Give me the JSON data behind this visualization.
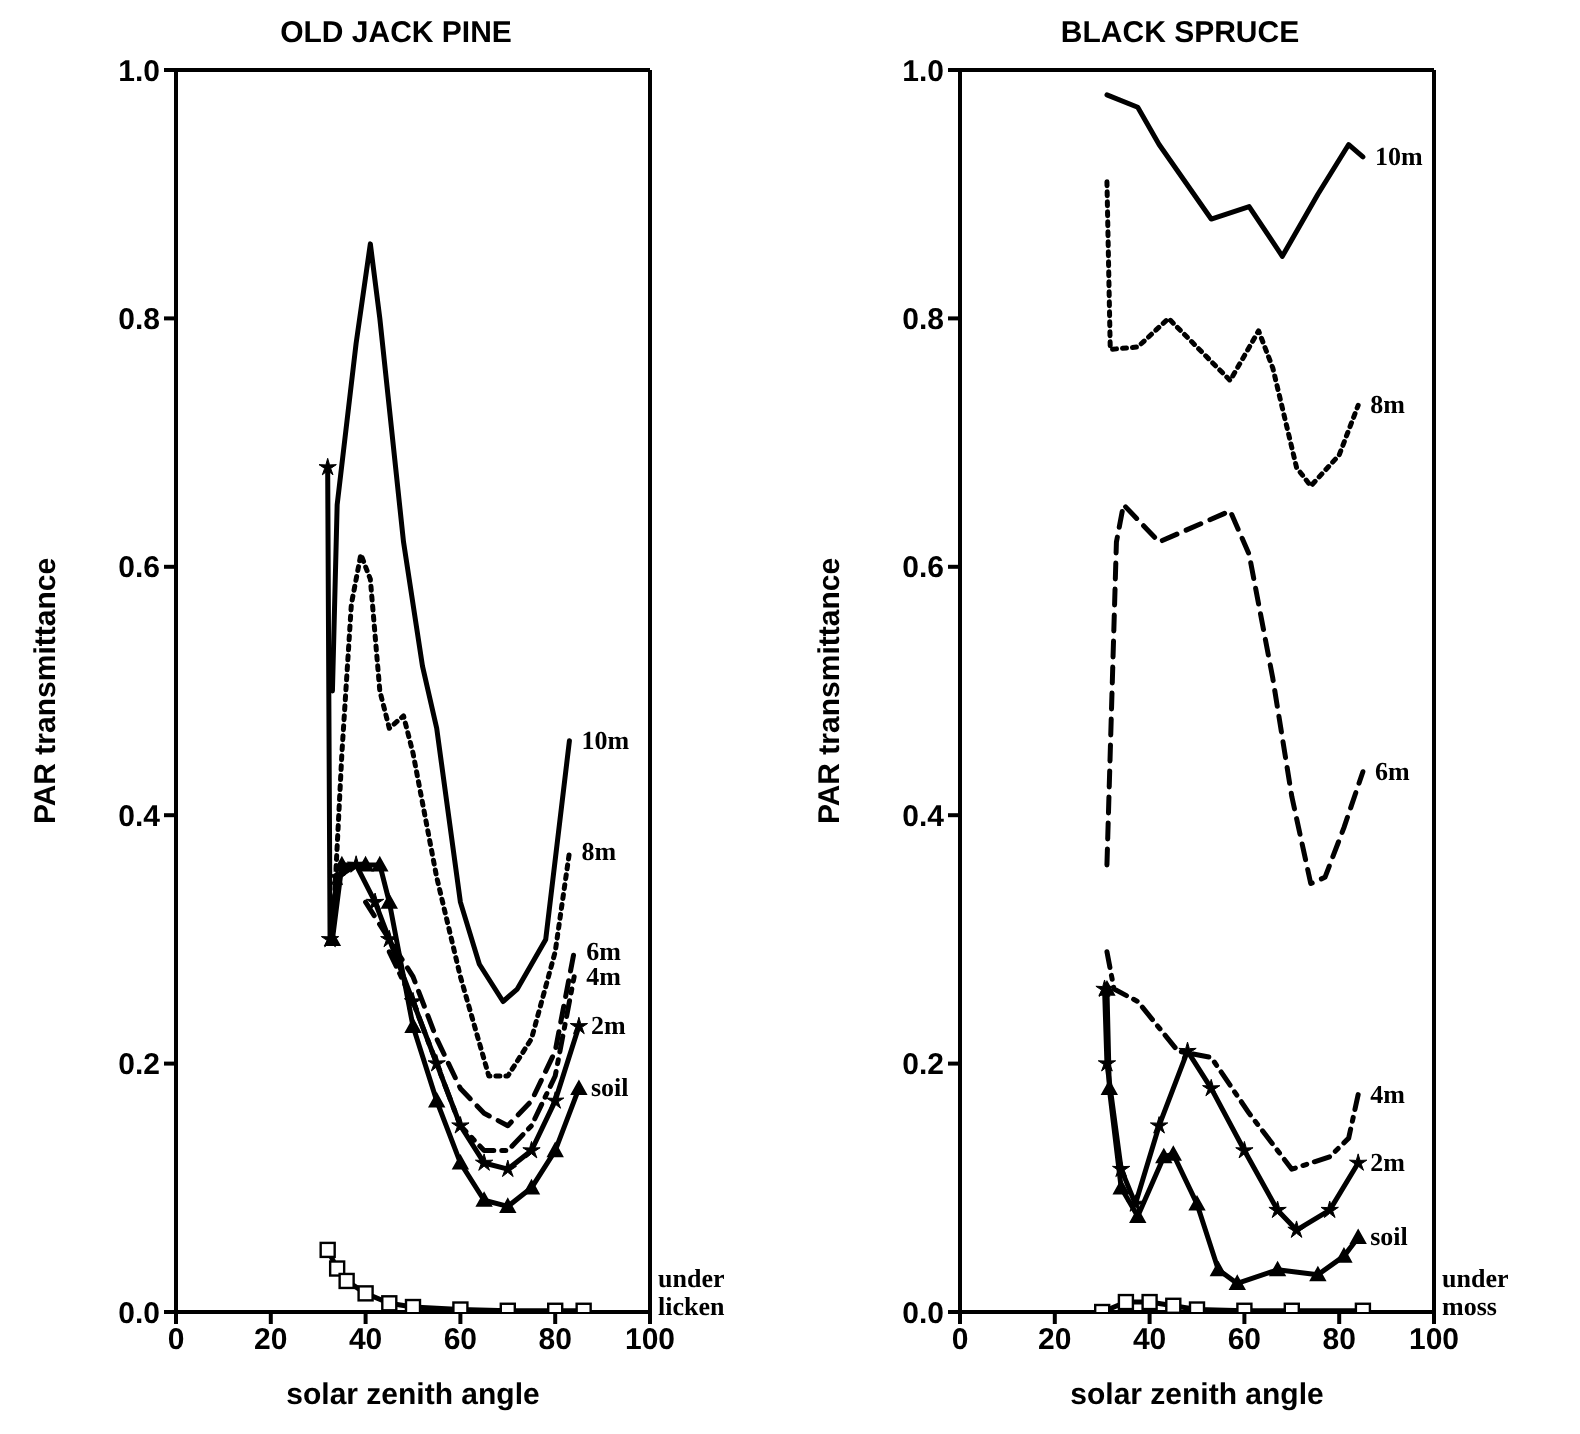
{
  "chart_data": [
    {
      "type": "line",
      "title": "OLD JACK PINE",
      "xlabel": "solar zenith angle",
      "ylabel": "PAR transmittance",
      "xlim": [
        0,
        100
      ],
      "xticks": [
        0,
        20,
        40,
        60,
        80,
        100
      ],
      "ylim": [
        0,
        1
      ],
      "yticks": [
        {
          "value": 0,
          "label": "0.0"
        },
        {
          "value": 0.2,
          "label": "0.2"
        },
        {
          "value": 0.4,
          "label": "0.4"
        },
        {
          "value": 0.6,
          "label": "0.6"
        },
        {
          "value": 0.8,
          "label": "0.8"
        },
        {
          "value": 1,
          "label": "1.0"
        }
      ],
      "grid": false,
      "legend": false,
      "series": [
        {
          "name": "10m",
          "color": "#000000",
          "line_style": "solid",
          "marker": "none",
          "x": [
            33,
            34,
            38,
            41,
            43,
            48,
            52,
            55,
            60,
            64,
            69,
            72,
            78,
            83
          ],
          "values": [
            0.5,
            0.65,
            0.78,
            0.86,
            0.8,
            0.62,
            0.52,
            0.47,
            0.33,
            0.28,
            0.25,
            0.26,
            0.3,
            0.46
          ]
        },
        {
          "name": "8m",
          "color": "#000000",
          "line_style": "dotted",
          "marker": "none",
          "x": [
            33,
            35,
            37,
            39,
            41,
            43,
            45,
            48,
            50,
            55,
            60,
            66,
            70,
            75,
            80,
            83
          ],
          "values": [
            0.3,
            0.45,
            0.57,
            0.61,
            0.59,
            0.5,
            0.47,
            0.48,
            0.45,
            0.35,
            0.27,
            0.19,
            0.19,
            0.22,
            0.29,
            0.37
          ]
        },
        {
          "name": "6m",
          "color": "#000000",
          "line_style": "dashed",
          "marker": "none",
          "x": [
            40,
            45,
            50,
            55,
            60,
            65,
            70,
            75,
            80,
            84
          ],
          "values": [
            0.33,
            0.3,
            0.27,
            0.22,
            0.18,
            0.16,
            0.15,
            0.17,
            0.21,
            0.29
          ]
        },
        {
          "name": "4m",
          "color": "#000000",
          "line_style": "dashdot",
          "marker": "none",
          "x": [
            45,
            50,
            55,
            60,
            65,
            70,
            75,
            80,
            84
          ],
          "values": [
            0.29,
            0.25,
            0.2,
            0.15,
            0.13,
            0.13,
            0.15,
            0.19,
            0.27
          ]
        },
        {
          "name": "2m",
          "color": "#000000",
          "line_style": "solid",
          "marker": "star",
          "x": [
            32,
            32.5,
            34,
            38,
            42,
            45,
            50,
            55,
            60,
            65,
            70,
            75,
            80,
            85
          ],
          "values": [
            0.68,
            0.3,
            0.35,
            0.36,
            0.33,
            0.3,
            0.25,
            0.2,
            0.15,
            0.12,
            0.115,
            0.13,
            0.17,
            0.23
          ]
        },
        {
          "name": "soil",
          "color": "#000000",
          "line_style": "solid",
          "marker": "triangle",
          "x": [
            33,
            35,
            40,
            43,
            45,
            50,
            55,
            60,
            65,
            70,
            75,
            80,
            85
          ],
          "values": [
            0.3,
            0.36,
            0.36,
            0.36,
            0.33,
            0.23,
            0.17,
            0.12,
            0.09,
            0.085,
            0.1,
            0.13,
            0.18
          ]
        },
        {
          "name": "under licken",
          "color": "#000000",
          "line_style": "solid",
          "marker": "square",
          "x": [
            32,
            34,
            36,
            40,
            45,
            50,
            60,
            70,
            80,
            86
          ],
          "values": [
            0.05,
            0.035,
            0.025,
            0.015,
            0.007,
            0.004,
            0.002,
            0.001,
            0.001,
            0.001
          ]
        }
      ]
    },
    {
      "type": "line",
      "title": "BLACK SPRUCE",
      "xlabel": "solar zenith angle",
      "ylabel": "PAR transmittance",
      "xlim": [
        0,
        100
      ],
      "xticks": [
        0,
        20,
        40,
        60,
        80,
        100
      ],
      "ylim": [
        0,
        1
      ],
      "yticks": [
        {
          "value": 0,
          "label": "0.0"
        },
        {
          "value": 0.2,
          "label": "0.2"
        },
        {
          "value": 0.4,
          "label": "0.4"
        },
        {
          "value": 0.6,
          "label": "0.6"
        },
        {
          "value": 0.8,
          "label": "0.8"
        },
        {
          "value": 1,
          "label": "1.0"
        }
      ],
      "grid": false,
      "legend": false,
      "series": [
        {
          "name": "10m",
          "color": "#000000",
          "line_style": "solid",
          "marker": "none",
          "x": [
            31,
            37.5,
            42,
            53,
            61,
            68,
            75.5,
            82,
            85
          ],
          "values": [
            0.98,
            0.97,
            0.94,
            0.88,
            0.89,
            0.85,
            0.9,
            0.94,
            0.93
          ]
        },
        {
          "name": "8m",
          "color": "#000000",
          "line_style": "dotted",
          "marker": "none",
          "x": [
            31,
            31.7,
            37.5,
            44,
            57,
            63,
            66,
            71,
            74,
            80,
            84
          ],
          "values": [
            0.91,
            0.775,
            0.777,
            0.8,
            0.75,
            0.79,
            0.76,
            0.68,
            0.665,
            0.69,
            0.73
          ]
        },
        {
          "name": "6m",
          "color": "#000000",
          "line_style": "dashed",
          "marker": "none",
          "x": [
            31,
            33,
            34.5,
            42,
            57,
            61,
            66,
            70,
            74,
            77,
            81,
            85
          ],
          "values": [
            0.36,
            0.62,
            0.65,
            0.62,
            0.645,
            0.61,
            0.51,
            0.415,
            0.345,
            0.35,
            0.39,
            0.435
          ]
        },
        {
          "name": "4m",
          "color": "#000000",
          "line_style": "dashdot",
          "marker": "none",
          "x": [
            31,
            32.5,
            37.5,
            46,
            53,
            61,
            70,
            78,
            82,
            84
          ],
          "values": [
            0.29,
            0.26,
            0.25,
            0.21,
            0.205,
            0.16,
            0.115,
            0.125,
            0.14,
            0.175
          ]
        },
        {
          "name": "2m",
          "color": "#000000",
          "line_style": "solid",
          "marker": "star",
          "x": [
            30.5,
            31,
            34,
            37,
            42,
            48,
            53,
            60,
            67,
            71,
            78,
            84
          ],
          "values": [
            0.26,
            0.2,
            0.115,
            0.087,
            0.15,
            0.21,
            0.18,
            0.13,
            0.082,
            0.066,
            0.082,
            0.12
          ]
        },
        {
          "name": "soil",
          "color": "#000000",
          "line_style": "solid",
          "marker": "triangle",
          "x": [
            31,
            31.5,
            34,
            37.5,
            43,
            45,
            50,
            54.5,
            58.5,
            67,
            75.5,
            81,
            84
          ],
          "values": [
            0.26,
            0.18,
            0.1,
            0.077,
            0.125,
            0.127,
            0.087,
            0.034,
            0.023,
            0.034,
            0.03,
            0.045,
            0.06
          ]
        },
        {
          "name": "under moss",
          "color": "#000000",
          "line_style": "solid",
          "marker": "square",
          "x": [
            30,
            35,
            40,
            45,
            50,
            60,
            70,
            85
          ],
          "values": [
            0,
            0.008,
            0.008,
            0.005,
            0.002,
            0.001,
            0.001,
            0.001
          ]
        }
      ]
    }
  ]
}
